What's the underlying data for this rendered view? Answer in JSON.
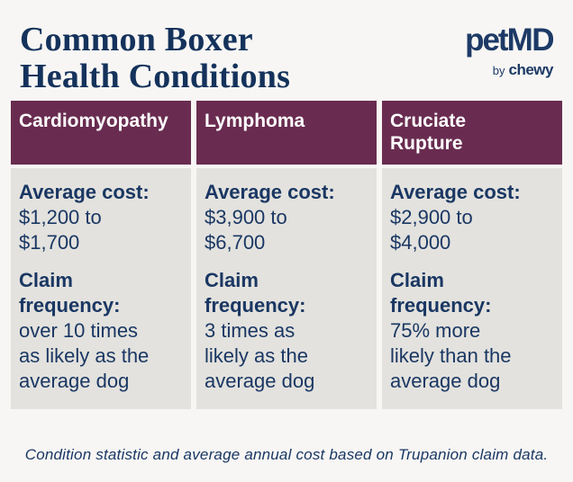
{
  "header": {
    "title": "Common Boxer\nHealth Conditions"
  },
  "logo": {
    "pet": "pet",
    "md": "MD",
    "by": "by",
    "chewy": "chewy"
  },
  "table": {
    "columns": [
      {
        "header": "Cardiomyopathy",
        "cost_label": "Average cost:",
        "cost_value": "$1,200 to\n$1,700",
        "frequency_label": "Claim\nfrequency:",
        "frequency_value": "over 10 times\nas likely as the\naverage dog"
      },
      {
        "header": "Lymphoma",
        "cost_label": "Average cost:",
        "cost_value": "$3,900 to\n$6,700",
        "frequency_label": "Claim\nfrequency:",
        "frequency_value": "3 times as\nlikely as the\naverage dog"
      },
      {
        "header": "Cruciate\nRupture",
        "cost_label": "Average cost:",
        "cost_value": "$2,900 to\n$4,000",
        "frequency_label": "Claim\nfrequency:",
        "frequency_value": "75% more\nlikely than the\naverage dog"
      }
    ]
  },
  "footer": {
    "note": "Condition statistic and average annual cost based on Trupanion claim data."
  },
  "colors": {
    "background": "#f7f6f4",
    "header_cell_bg": "#692c50",
    "body_cell_bg": "#e3e2de",
    "navy_text": "#17355e",
    "header_text": "#ffffff"
  },
  "chart_data": {
    "type": "table",
    "title": "Common Boxer Health Conditions",
    "columns": [
      "Cardiomyopathy",
      "Lymphoma",
      "Cruciate Rupture"
    ],
    "rows": [
      {
        "label": "Average cost",
        "values": [
          "$1,200 to $1,700",
          "$3,900 to $6,700",
          "$2,900 to $4,000"
        ]
      },
      {
        "label": "Claim frequency",
        "values": [
          "over 10 times as likely as the average dog",
          "3 times as likely as the average dog",
          "75% more likely than the average dog"
        ]
      }
    ],
    "note": "Condition statistic and average annual cost based on Trupanion claim data."
  }
}
